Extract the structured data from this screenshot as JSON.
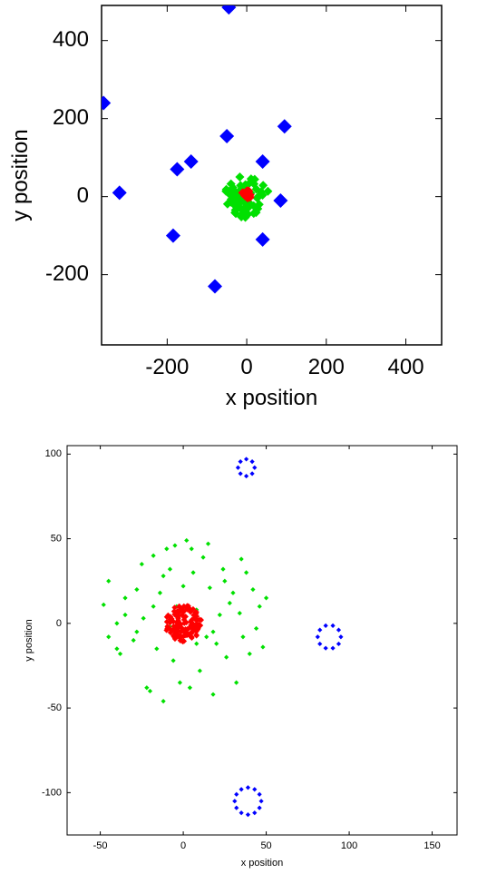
{
  "chart_data": [
    {
      "type": "scatter",
      "title": "",
      "xlabel": "x position",
      "ylabel": "y position",
      "xlim": [
        -365,
        490
      ],
      "ylim": [
        -380,
        490
      ],
      "xticks": [
        -200,
        0,
        200,
        400
      ],
      "yticks": [
        -200,
        0,
        200,
        400
      ],
      "xtick_labels": [
        "-200",
        "0",
        "200",
        "400"
      ],
      "ytick_labels": [
        "-200",
        "0",
        "200",
        "400"
      ],
      "grid": false,
      "series": [
        {
          "color": "#0000ff",
          "marker": "diamond-large",
          "points": [
            [
              -45,
              485
            ],
            [
              -360,
              240
            ],
            [
              -50,
              155
            ],
            [
              95,
              180
            ],
            [
              40,
              90
            ],
            [
              -140,
              90
            ],
            [
              -175,
              70
            ],
            [
              -320,
              10
            ],
            [
              85,
              -10
            ],
            [
              40,
              -110
            ],
            [
              -185,
              -100
            ],
            [
              -80,
              -230
            ]
          ]
        },
        {
          "color": "#00e000",
          "marker": "diamond-cluster",
          "cluster": {
            "center": [
              0,
              0
            ],
            "radius": 55,
            "count": 60
          }
        },
        {
          "color": "#ff0000",
          "marker": "diamond-cluster",
          "cluster": {
            "center": [
              0,
              5
            ],
            "radius": 12,
            "count": 12
          }
        }
      ]
    },
    {
      "type": "scatter",
      "title": "",
      "xlabel": "x position",
      "ylabel": "y position",
      "xlim": [
        -70,
        165
      ],
      "ylim": [
        -125,
        105
      ],
      "xticks": [
        -50,
        0,
        50,
        100,
        150
      ],
      "yticks": [
        -100,
        -50,
        0,
        50,
        100
      ],
      "xtick_labels": [
        "-50",
        "0",
        "50",
        "100",
        "150"
      ],
      "ytick_labels": [
        "-100",
        "-50",
        "0",
        "50",
        "100"
      ],
      "grid": false,
      "series": [
        {
          "color": "#0000ff",
          "marker": "diamond-small",
          "rings": [
            {
              "center": [
                38,
                92
              ],
              "radius": 5,
              "count": 8
            },
            {
              "center": [
                88,
                -8
              ],
              "radius": 7,
              "count": 10
            },
            {
              "center": [
                39,
                -105
              ],
              "radius": 8,
              "count": 12
            }
          ]
        },
        {
          "color": "#00e000",
          "marker": "diamond-small",
          "points": [
            [
              -45,
              25
            ],
            [
              -40,
              0
            ],
            [
              -38,
              -18
            ],
            [
              -35,
              15
            ],
            [
              -45,
              -8
            ],
            [
              -48,
              11
            ],
            [
              -30,
              -10
            ],
            [
              -28,
              20
            ],
            [
              -24,
              3
            ],
            [
              -22,
              -38
            ],
            [
              -20,
              -40
            ],
            [
              -18,
              40
            ],
            [
              -16,
              -15
            ],
            [
              -14,
              18
            ],
            [
              -12,
              -46
            ],
            [
              -10,
              44
            ],
            [
              -8,
              32
            ],
            [
              -6,
              -22
            ],
            [
              -4,
              10
            ],
            [
              -2,
              -35
            ],
            [
              0,
              22
            ],
            [
              2,
              49
            ],
            [
              4,
              -38
            ],
            [
              6,
              30
            ],
            [
              8,
              8
            ],
            [
              10,
              -28
            ],
            [
              12,
              39
            ],
            [
              14,
              -8
            ],
            [
              16,
              21
            ],
            [
              18,
              -42
            ],
            [
              20,
              -12
            ],
            [
              22,
              5
            ],
            [
              24,
              32
            ],
            [
              26,
              -20
            ],
            [
              28,
              12
            ],
            [
              30,
              18
            ],
            [
              32,
              -35
            ],
            [
              34,
              6
            ],
            [
              36,
              -8
            ],
            [
              38,
              30
            ],
            [
              40,
              -18
            ],
            [
              42,
              20
            ],
            [
              44,
              -3
            ],
            [
              46,
              10
            ],
            [
              48,
              -14
            ],
            [
              50,
              15
            ],
            [
              -35,
              5
            ],
            [
              -25,
              35
            ],
            [
              -12,
              28
            ],
            [
              -5,
              46
            ],
            [
              5,
              44
            ],
            [
              15,
              47
            ],
            [
              35,
              38
            ],
            [
              -40,
              -15
            ],
            [
              -8,
              -2
            ],
            [
              18,
              -5
            ],
            [
              -28,
              -5
            ],
            [
              25,
              25
            ],
            [
              -18,
              10
            ],
            [
              8,
              -12
            ]
          ]
        },
        {
          "color": "#ff0000",
          "marker": "diamond-cluster",
          "cluster": {
            "center": [
              0,
              0
            ],
            "radius": 11,
            "count": 140
          }
        }
      ]
    }
  ]
}
